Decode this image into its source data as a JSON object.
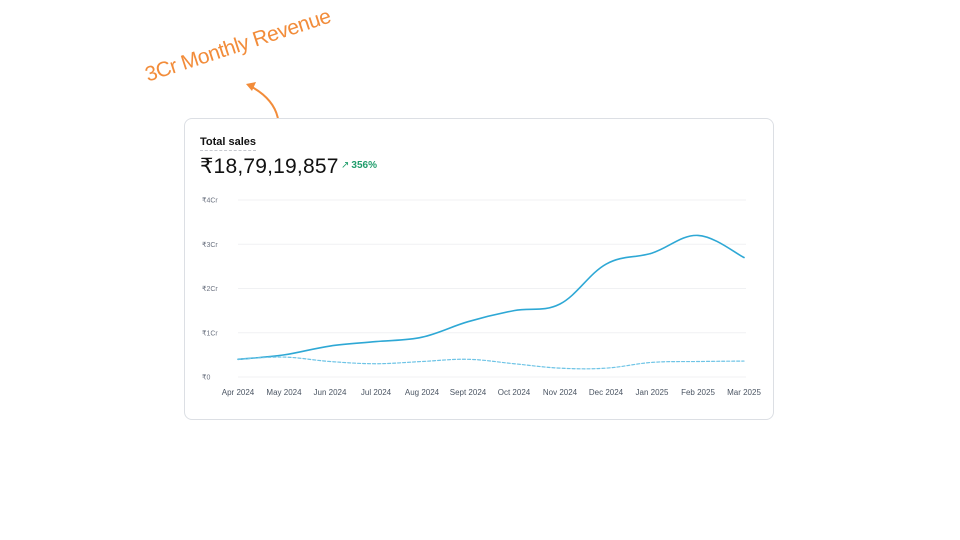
{
  "annotation": {
    "text": "3Cr Monthly Revenue"
  },
  "card": {
    "title": "Total sales",
    "total": "₹18,79,19,857",
    "change": "356%",
    "change_icon": "arrow-up-right-icon"
  },
  "colors": {
    "primary_line": "#2ea8d5",
    "comparison_line": "#6ec4e6",
    "positive_change": "#1f9d6b",
    "annotation": "#f28c3a",
    "grid": "#f0f1f3"
  },
  "chart_data": {
    "type": "line",
    "categories": [
      "Apr 2024",
      "May 2024",
      "Jun 2024",
      "Jul 2024",
      "Aug 2024",
      "Sept 2024",
      "Oct 2024",
      "Nov 2024",
      "Dec 2024",
      "Jan 2025",
      "Feb 2025",
      "Mar 2025"
    ],
    "series": [
      {
        "values": [
          0.4,
          0.5,
          0.7,
          0.8,
          0.9,
          1.25,
          1.5,
          1.65,
          2.55,
          2.8,
          3.2,
          2.7
        ],
        "style": "solid"
      },
      {
        "values": [
          0.4,
          0.45,
          0.35,
          0.3,
          0.35,
          0.4,
          0.3,
          0.2,
          0.2,
          0.33,
          0.35,
          0.36
        ],
        "style": "dashed"
      }
    ],
    "yticks": [
      "₹0",
      "₹1Cr",
      "₹2Cr",
      "₹3Cr",
      "₹4Cr"
    ],
    "ylim": [
      0,
      4
    ],
    "grid": true
  }
}
